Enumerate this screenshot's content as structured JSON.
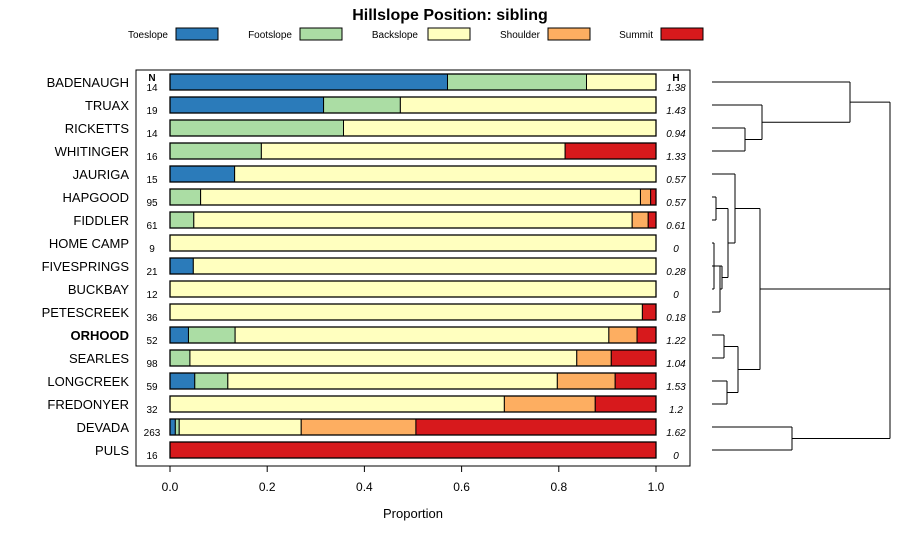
{
  "chart_data": {
    "type": "bar",
    "orientation": "horizontal",
    "stacked": true,
    "title": "Hillslope Position: sibling",
    "xlabel": "Proportion",
    "ylabel": "",
    "xlim": [
      -0.07,
      1.07
    ],
    "xticks": [
      0.0,
      0.2,
      0.4,
      0.6,
      0.8,
      1.0
    ],
    "xtick_labels": [
      "0.0",
      "0.2",
      "0.4",
      "0.6",
      "0.8",
      "1.0"
    ],
    "n_header": "N",
    "h_header": "H",
    "legend_position": "top",
    "series": [
      {
        "name": "Toeslope",
        "color": "#2b7bba"
      },
      {
        "name": "Footslope",
        "color": "#abdda4"
      },
      {
        "name": "Backslope",
        "color": "#ffffbf"
      },
      {
        "name": "Shoulder",
        "color": "#fdae61"
      },
      {
        "name": "Summit",
        "color": "#d7191c"
      }
    ],
    "categories": [
      {
        "name": "BADENAUGH",
        "n": "14",
        "h": "1.38",
        "bold": false,
        "values": [
          0.571,
          0.286,
          0.143,
          0,
          0
        ]
      },
      {
        "name": "TRUAX",
        "n": "19",
        "h": "1.43",
        "bold": false,
        "values": [
          0.316,
          0.158,
          0.526,
          0,
          0
        ]
      },
      {
        "name": "RICKETTS",
        "n": "14",
        "h": "0.94",
        "bold": false,
        "values": [
          0,
          0.357,
          0.643,
          0,
          0
        ]
      },
      {
        "name": "WHITINGER",
        "n": "16",
        "h": "1.33",
        "bold": false,
        "values": [
          0,
          0.188,
          0.625,
          0,
          0.187
        ]
      },
      {
        "name": "JAURIGA",
        "n": "15",
        "h": "0.57",
        "bold": false,
        "values": [
          0.133,
          0,
          0.867,
          0,
          0
        ]
      },
      {
        "name": "HAPGOOD",
        "n": "95",
        "h": "0.57",
        "bold": false,
        "values": [
          0,
          0.063,
          0.905,
          0.021,
          0.011
        ]
      },
      {
        "name": "FIDDLER",
        "n": "61",
        "h": "0.61",
        "bold": false,
        "values": [
          0,
          0.049,
          0.902,
          0.033,
          0.016
        ]
      },
      {
        "name": "HOME CAMP",
        "n": "9",
        "h": "0",
        "bold": false,
        "values": [
          0,
          0,
          1.0,
          0,
          0
        ]
      },
      {
        "name": "FIVESPRINGS",
        "n": "21",
        "h": "0.28",
        "bold": false,
        "values": [
          0.048,
          0,
          0.952,
          0,
          0
        ]
      },
      {
        "name": "BUCKBAY",
        "n": "12",
        "h": "0",
        "bold": false,
        "values": [
          0,
          0,
          1.0,
          0,
          0
        ]
      },
      {
        "name": "PETESCREEK",
        "n": "36",
        "h": "0.18",
        "bold": false,
        "values": [
          0,
          0,
          0.972,
          0,
          0.028
        ]
      },
      {
        "name": "ORHOOD",
        "n": "52",
        "h": "1.22",
        "bold": true,
        "values": [
          0.038,
          0.096,
          0.769,
          0.058,
          0.039
        ]
      },
      {
        "name": "SEARLES",
        "n": "98",
        "h": "1.04",
        "bold": false,
        "values": [
          0,
          0.041,
          0.796,
          0.071,
          0.092
        ]
      },
      {
        "name": "LONGCREEK",
        "n": "59",
        "h": "1.53",
        "bold": false,
        "values": [
          0.051,
          0.068,
          0.678,
          0.119,
          0.084
        ]
      },
      {
        "name": "FREDONYER",
        "n": "32",
        "h": "1.2",
        "bold": false,
        "values": [
          0,
          0,
          0.688,
          0.187,
          0.125
        ]
      },
      {
        "name": "DEVADA",
        "n": "263",
        "h": "1.62",
        "bold": false,
        "values": [
          0.011,
          0.008,
          0.251,
          0.236,
          0.494
        ]
      },
      {
        "name": "PULS",
        "n": "16",
        "h": "0",
        "bold": false,
        "values": [
          0,
          0,
          0,
          0,
          1.0
        ]
      }
    ]
  }
}
